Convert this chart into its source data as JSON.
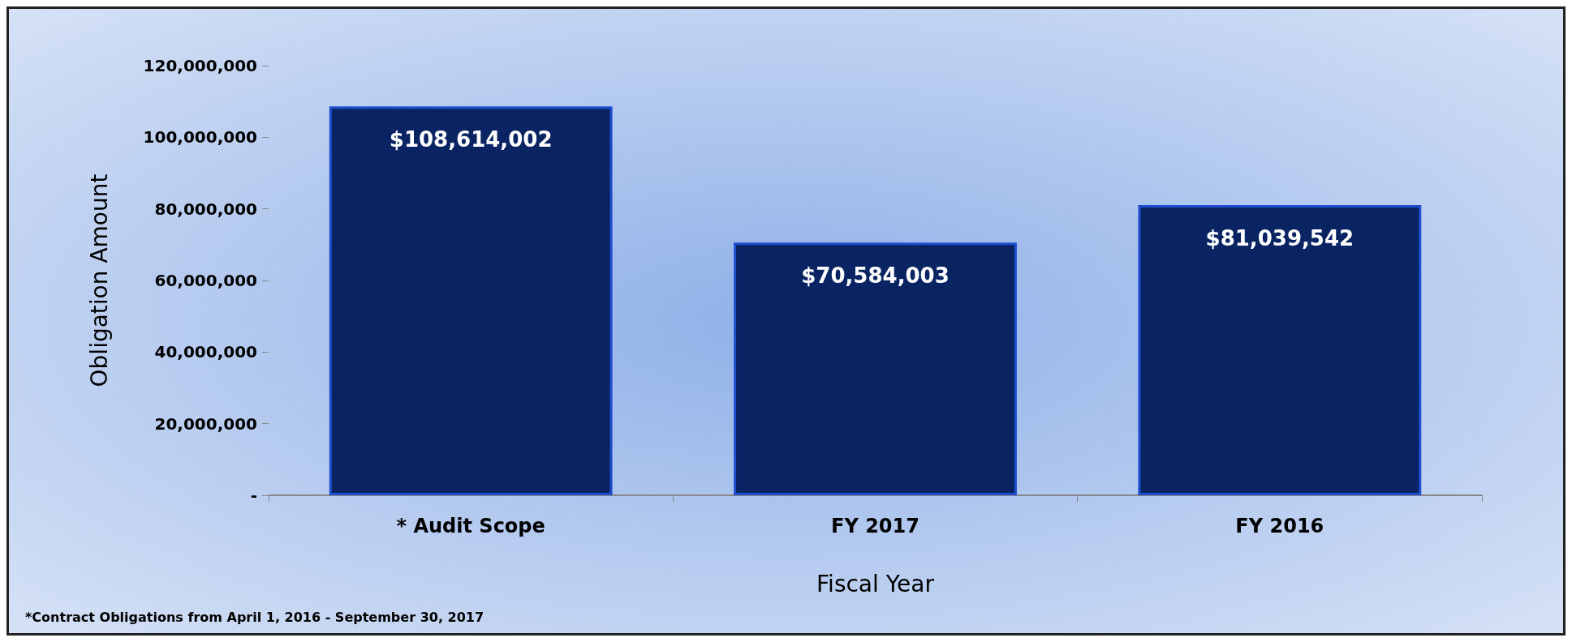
{
  "chart_data": {
    "type": "bar",
    "xlabel": "Fiscal Year",
    "ylabel": "Obligation Amount",
    "categories": [
      "* Audit Scope",
      "FY 2017",
      "FY 2016"
    ],
    "values": [
      108614002,
      70584003,
      81039542
    ],
    "value_labels": [
      "$108,614,002",
      "$70,584,003",
      "$81,039,542"
    ],
    "color": "#0a2463",
    "ylim": [
      0,
      120000000
    ],
    "yticks": [
      {
        "value": 0,
        "label": "-"
      },
      {
        "value": 20000000,
        "label": "20,000,000"
      },
      {
        "value": 40000000,
        "label": "40,000,000"
      },
      {
        "value": 60000000,
        "label": "60,000,000"
      },
      {
        "value": 80000000,
        "label": "80,000,000"
      },
      {
        "value": 100000000,
        "label": "100,000,000"
      },
      {
        "value": 120000000,
        "label": "120,000,000"
      }
    ],
    "grid": false,
    "annotations": [
      "*Contract Obligations from April 1, 2016 - September 30, 2017"
    ]
  }
}
